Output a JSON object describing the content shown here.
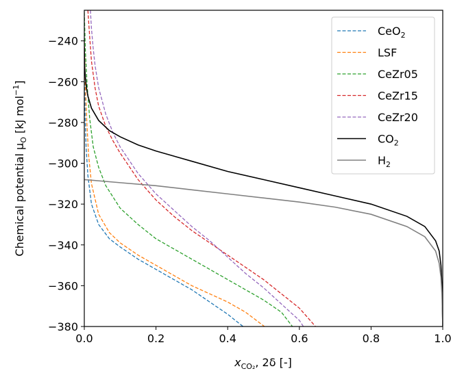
{
  "chart_data": {
    "type": "line",
    "xlabel": {
      "main": "x",
      "sub": "CO₂",
      "rest": ", 2δ   [-]"
    },
    "ylabel": {
      "main": "Chemical potential μ",
      "sub": "O",
      "rest": " [kJ mol",
      "sup": "−1",
      "end": "]"
    },
    "xlim": [
      0.0,
      1.0
    ],
    "ylim": [
      -380,
      -225
    ],
    "xticks": [
      0.0,
      0.2,
      0.4,
      0.6,
      0.8,
      1.0
    ],
    "xtick_labels": [
      "0.0",
      "0.2",
      "0.4",
      "0.6",
      "0.8",
      "1.0"
    ],
    "yticks": [
      -240,
      -260,
      -280,
      -300,
      -320,
      -340,
      -360,
      -380
    ],
    "ytick_labels": [
      "−240",
      "−260",
      "−280",
      "−300",
      "−320",
      "−340",
      "−360",
      "−380"
    ],
    "grid": false,
    "legend_position": "top-right",
    "series": [
      {
        "name": "CeO",
        "name_sub": "2",
        "color": "#1f77b4",
        "dash": true,
        "x": [
          0.0,
          0.002,
          0.005,
          0.01,
          0.02,
          0.04,
          0.07,
          0.1,
          0.15,
          0.2,
          0.25,
          0.3,
          0.35,
          0.4,
          0.45
        ],
        "y": [
          -240,
          -275,
          -292,
          -306,
          -320,
          -330,
          -337,
          -341,
          -347,
          -352,
          -357,
          -362,
          -368,
          -374,
          -381
        ]
      },
      {
        "name": "LSF",
        "name_sub": "",
        "color": "#ff7f0e",
        "dash": true,
        "x": [
          0.0,
          0.003,
          0.007,
          0.012,
          0.02,
          0.04,
          0.07,
          0.1,
          0.15,
          0.2,
          0.25,
          0.3,
          0.35,
          0.4,
          0.45,
          0.51
        ],
        "y": [
          -240,
          -262,
          -280,
          -296,
          -310,
          -325,
          -334,
          -339,
          -345,
          -350,
          -355,
          -360,
          -364,
          -368,
          -373,
          -381
        ]
      },
      {
        "name": "CeZr05",
        "name_sub": "",
        "color": "#2ca02c",
        "dash": true,
        "x": [
          0.0,
          0.003,
          0.008,
          0.015,
          0.025,
          0.04,
          0.06,
          0.1,
          0.15,
          0.2,
          0.25,
          0.3,
          0.35,
          0.4,
          0.45,
          0.5,
          0.55,
          0.585
        ],
        "y": [
          -226,
          -245,
          -262,
          -278,
          -292,
          -302,
          -311,
          -322,
          -330,
          -337,
          -342,
          -347,
          -352,
          -357,
          -362,
          -367,
          -373,
          -381
        ]
      },
      {
        "name": "CeZr15",
        "name_sub": "",
        "color": "#d62728",
        "dash": true,
        "x": [
          0.01,
          0.015,
          0.02,
          0.03,
          0.04,
          0.06,
          0.08,
          0.1,
          0.15,
          0.2,
          0.25,
          0.3,
          0.35,
          0.4,
          0.45,
          0.5,
          0.55,
          0.6,
          0.65
        ],
        "y": [
          -225,
          -238,
          -250,
          -263,
          -272,
          -282,
          -289,
          -295,
          -308,
          -318,
          -326,
          -333,
          -339,
          -345,
          -351,
          -357,
          -364,
          -371,
          -381
        ]
      },
      {
        "name": "CeZr20",
        "name_sub": "",
        "color": "#9467bd",
        "dash": true,
        "x": [
          0.017,
          0.02,
          0.025,
          0.03,
          0.04,
          0.06,
          0.08,
          0.1,
          0.15,
          0.2,
          0.25,
          0.3,
          0.35,
          0.4,
          0.45,
          0.5,
          0.55,
          0.6,
          0.615
        ],
        "y": [
          -225,
          -234,
          -244,
          -252,
          -263,
          -276,
          -285,
          -292,
          -305,
          -315,
          -323,
          -331,
          -338,
          -346,
          -354,
          -361,
          -369,
          -377,
          -381
        ]
      },
      {
        "name": "CO",
        "name_sub": "2",
        "color": "#000000",
        "dash": false,
        "x": [
          0.0,
          0.001,
          0.003,
          0.006,
          0.01,
          0.02,
          0.04,
          0.07,
          0.1,
          0.15,
          0.2,
          0.3,
          0.4,
          0.5,
          0.6,
          0.7,
          0.8,
          0.9,
          0.95,
          0.98,
          0.99,
          0.995,
          0.998,
          1.0
        ],
        "y": [
          -243,
          -253,
          -258,
          -263,
          -267,
          -273,
          -279,
          -284,
          -287,
          -291,
          -294,
          -299,
          -304,
          -308,
          -312,
          -316,
          -320,
          -326,
          -331,
          -338,
          -343,
          -350,
          -360,
          -380
        ]
      },
      {
        "name": "H",
        "name_sub": "2",
        "color": "#808080",
        "dash": false,
        "x": [
          0.0,
          0.1,
          0.2,
          0.3,
          0.4,
          0.5,
          0.6,
          0.7,
          0.8,
          0.9,
          0.95,
          0.98,
          0.99,
          0.995,
          0.998,
          1.0
        ],
        "y": [
          -308,
          -309.5,
          -311,
          -313,
          -315,
          -317,
          -319,
          -321.5,
          -325,
          -331,
          -336,
          -343,
          -349,
          -356,
          -365,
          -380
        ]
      }
    ]
  }
}
